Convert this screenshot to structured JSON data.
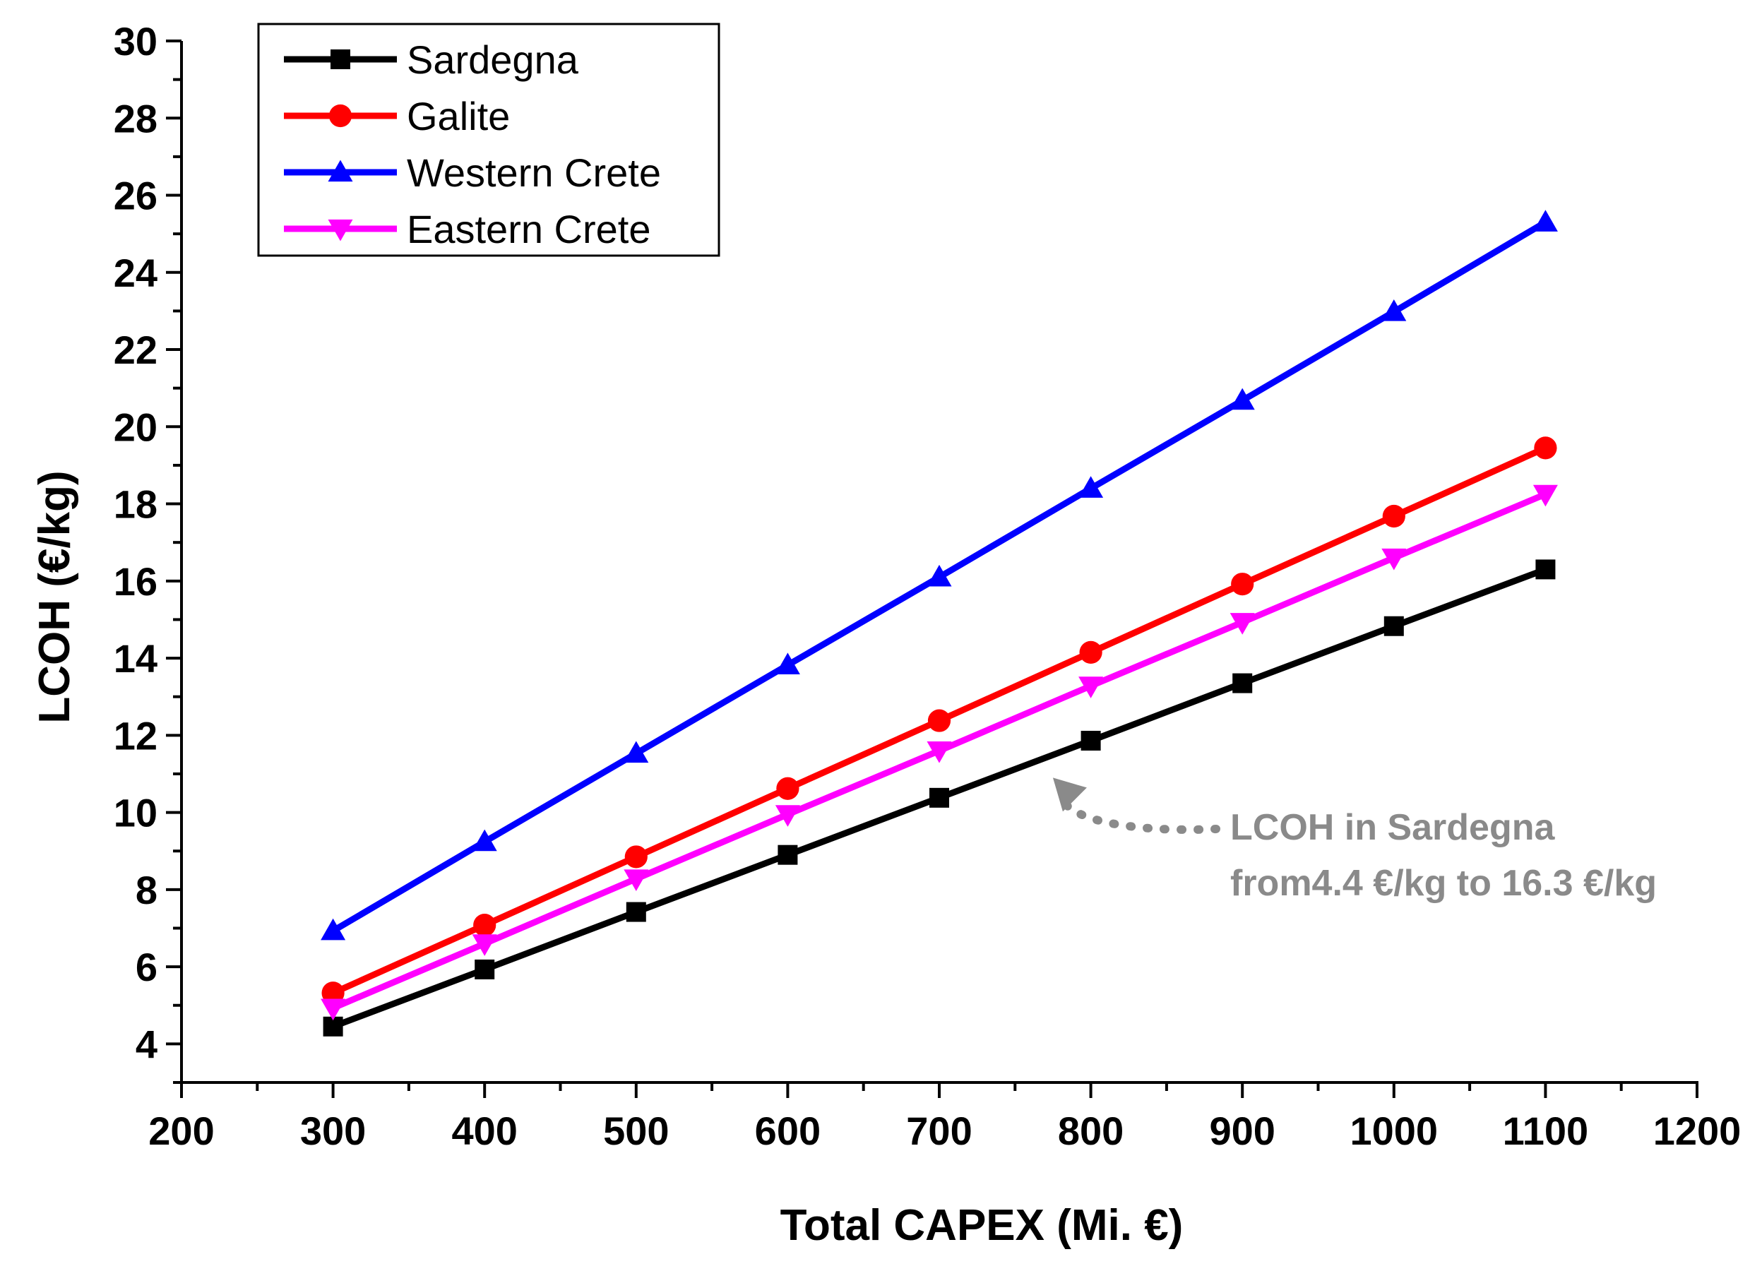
{
  "chart_data": {
    "type": "line",
    "title": "",
    "xlabel": "Total CAPEX (Mi. €)",
    "ylabel": "LCOH (€/kg)",
    "xlim": [
      200,
      1200
    ],
    "ylim": [
      3,
      30
    ],
    "x_ticks": [
      200,
      300,
      400,
      500,
      600,
      700,
      800,
      900,
      1000,
      1100,
      1200
    ],
    "y_ticks": [
      4,
      6,
      8,
      10,
      12,
      14,
      16,
      18,
      20,
      22,
      24,
      26,
      28,
      30
    ],
    "x": [
      300,
      400,
      500,
      600,
      700,
      800,
      900,
      1000,
      1100
    ],
    "series": [
      {
        "name": "Sardegna",
        "color": "#000000",
        "marker": "square",
        "values": [
          4.45,
          5.93,
          7.42,
          8.9,
          10.38,
          11.86,
          13.35,
          14.83,
          16.3
        ]
      },
      {
        "name": "Galite",
        "color": "#ff0000",
        "marker": "circle",
        "values": [
          5.32,
          7.08,
          8.85,
          10.62,
          12.38,
          14.15,
          15.92,
          17.68,
          19.45
        ]
      },
      {
        "name": "Western Crete",
        "color": "#0000ff",
        "marker": "triangle-up",
        "values": [
          6.93,
          9.24,
          11.53,
          13.82,
          16.1,
          18.4,
          20.68,
          22.98,
          25.3
        ]
      },
      {
        "name": "Eastern Crete",
        "color": "#ff00ff",
        "marker": "triangle-down",
        "values": [
          4.93,
          6.6,
          8.28,
          9.95,
          11.6,
          13.28,
          14.93,
          16.6,
          18.25
        ]
      }
    ],
    "legend_position": "top-left",
    "annotation": {
      "lines": [
        "LCOH in Sardegna",
        "from4.4 €/kg to 16.3 €/kg"
      ],
      "color": "#8a8a8a",
      "points_to": {
        "x": 775,
        "y": 10.9
      }
    }
  }
}
